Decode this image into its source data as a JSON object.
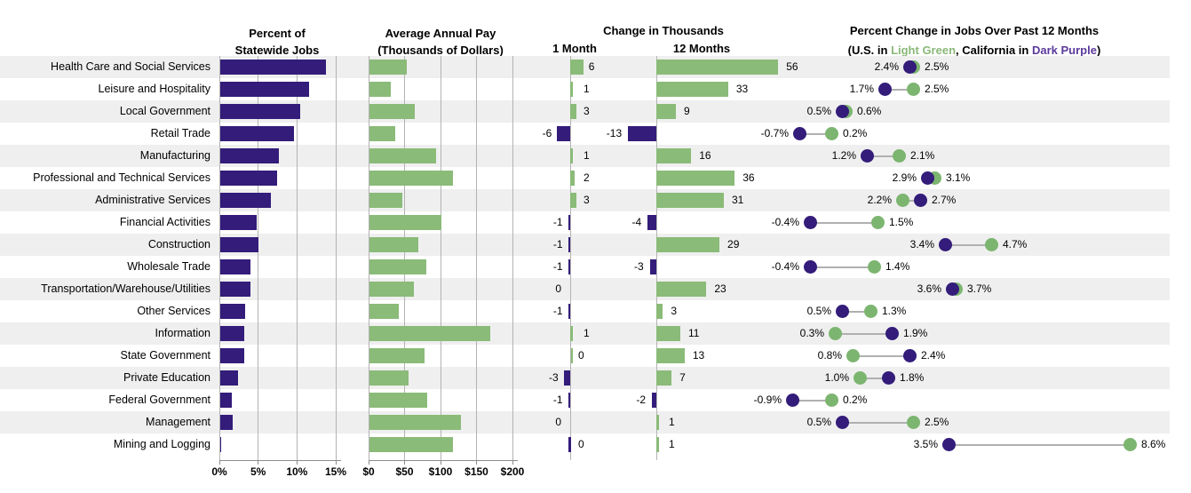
{
  "headers": {
    "panel1": {
      "line1": "Percent of",
      "line2": "Statewide Jobs"
    },
    "panel2": {
      "line1": "Average Annual Pay",
      "line2": "(Thousands of Dollars)"
    },
    "panel3": {
      "title": "Change in Thousands",
      "col1": "1 Month",
      "col2": "12 Months"
    },
    "panel4": {
      "title": "Percent Change in Jobs Over Past 12 Months",
      "sub_parts": {
        "p1": "(U.S. in ",
        "green": "Light Green",
        "p2": ", California in ",
        "purple": "Dark Purple",
        "p3": ")"
      }
    }
  },
  "axes": {
    "percent_ticks": [
      "0%",
      "5%",
      "10%",
      "15%"
    ],
    "pay_ticks": [
      "$0",
      "$50",
      "$100",
      "$150",
      "$200"
    ]
  },
  "colors": {
    "dark_purple": "#331c7a",
    "light_green": "#8abb78",
    "dot_green": "#7cb570",
    "stripe_gray": "#efefef",
    "gridline": "#b3b3b3",
    "axis": "#8c8c8c",
    "connector": "#b0b0b0",
    "header_green_text": "#8ab878",
    "header_purple_text": "#5b3a9b"
  },
  "chart_data": {
    "type": "table",
    "title": "California industry employment dashboard",
    "panels": [
      "Percent of Statewide Jobs",
      "Average Annual Pay (Thousands of Dollars)",
      "Change in Thousands (1 Month / 12 Months)",
      "Percent Change in Jobs Over Past 12 Months (U.S. in Light Green, California in Dark Purple)"
    ],
    "industries": [
      "Health Care and Social Services",
      "Leisure and Hospitality",
      "Local Government",
      "Retail Trade",
      "Manufacturing",
      "Professional and Technical Services",
      "Administrative Services",
      "Financial Activities",
      "Construction",
      "Wholesale Trade",
      "Transportation/Warehouse/Utilities",
      "Other Services",
      "Information",
      "State Government",
      "Private Education",
      "Federal Government",
      "Management",
      "Mining and Logging"
    ],
    "percent_statewide_jobs": [
      13.7,
      11.5,
      10.4,
      9.6,
      7.6,
      7.4,
      6.6,
      4.8,
      5.0,
      4.0,
      3.9,
      3.3,
      3.2,
      3.2,
      2.3,
      1.5,
      1.6,
      0.1
    ],
    "percent_statewide_axis": {
      "xlim": [
        0,
        15
      ],
      "ticks": [
        0,
        5,
        10,
        15
      ],
      "unit": "%"
    },
    "avg_annual_pay_thousands": [
      52,
      30,
      64,
      36,
      93,
      117,
      46,
      100,
      68,
      79,
      62,
      41,
      169,
      77,
      55,
      81,
      128,
      116
    ],
    "pay_axis": {
      "xlim": [
        0,
        200
      ],
      "ticks": [
        0,
        50,
        100,
        150,
        200
      ],
      "unit": "$ thousands"
    },
    "change_1_month_thousands": [
      6,
      1,
      3,
      -6,
      1,
      2,
      3,
      -1,
      -1,
      -1,
      0,
      -1,
      1,
      0,
      -3,
      -1,
      0,
      0
    ],
    "change_12_months_thousands": [
      56,
      33,
      9,
      -13,
      16,
      36,
      31,
      -4,
      29,
      -3,
      23,
      3,
      11,
      13,
      7,
      -2,
      1,
      1
    ],
    "pct_change_12mo_us": [
      2.5,
      2.5,
      0.6,
      0.2,
      2.1,
      3.1,
      2.2,
      1.5,
      4.7,
      1.4,
      3.7,
      1.3,
      0.3,
      0.8,
      1.0,
      0.2,
      2.5,
      8.6
    ],
    "pct_change_12mo_california": [
      2.4,
      1.7,
      0.5,
      -0.7,
      1.2,
      2.9,
      2.7,
      -0.4,
      3.4,
      -0.4,
      3.6,
      0.5,
      1.9,
      2.4,
      1.8,
      -0.9,
      0.5,
      3.5
    ],
    "layout_hints": {
      "zero_label_sides_1m": {
        "10": "left",
        "13": "right",
        "16": "left",
        "17": "right"
      },
      "sliver_bars_1m": {
        "13": "green",
        "17": "purple"
      }
    }
  }
}
